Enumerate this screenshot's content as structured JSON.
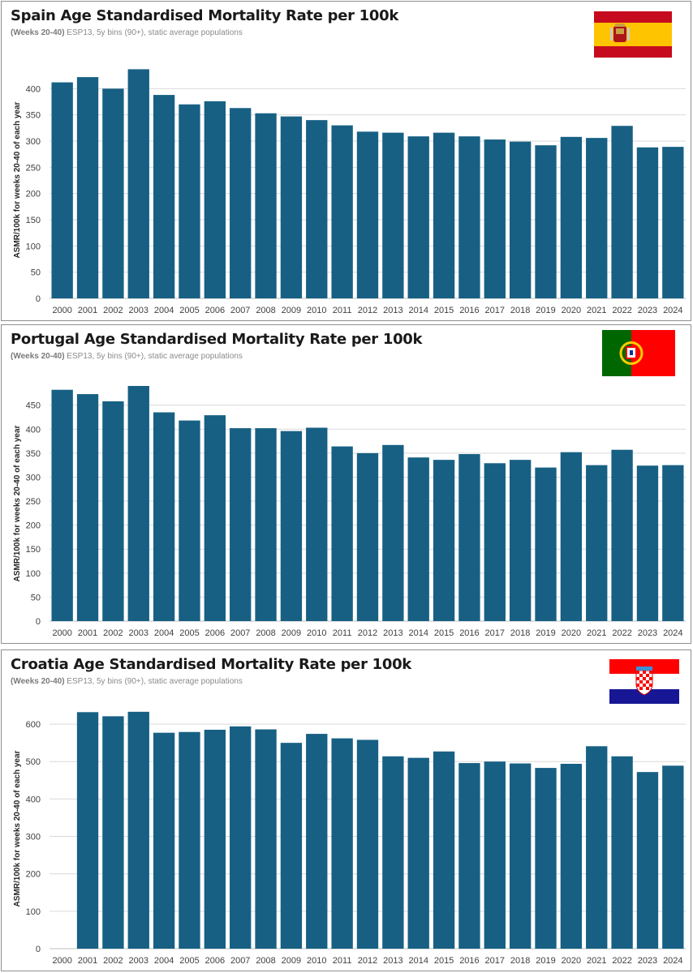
{
  "colors": {
    "bar": "#176084",
    "grid": "#d9d9d9",
    "axis": "#bfbfbf"
  },
  "chart_data": [
    {
      "type": "bar",
      "title": "Spain Age Standardised Mortality Rate per 100k",
      "subtitle_bold": "(Weeks 20-40)",
      "subtitle_rest": " ESP13, 5y bins (90+), static average populations",
      "ylabel": "ASMR/100k for weeks 20-40 of each year",
      "ylim": [
        0,
        450
      ],
      "yticks": [
        0,
        50,
        100,
        150,
        200,
        250,
        300,
        350,
        400
      ],
      "categories": [
        "2000",
        "2001",
        "2002",
        "2003",
        "2004",
        "2005",
        "2006",
        "2007",
        "2008",
        "2009",
        "2010",
        "2011",
        "2012",
        "2013",
        "2014",
        "2015",
        "2016",
        "2017",
        "2018",
        "2019",
        "2020",
        "2021",
        "2022",
        "2023",
        "2024"
      ],
      "values": [
        412,
        422,
        400,
        437,
        388,
        370,
        376,
        363,
        353,
        347,
        340,
        330,
        318,
        316,
        309,
        316,
        309,
        303,
        299,
        292,
        308,
        306,
        329,
        288,
        289
      ],
      "grid": true,
      "legend": "none",
      "flag": "spain-flag"
    },
    {
      "type": "bar",
      "title": "Portugal Age Standardised Mortality Rate per 100k",
      "subtitle_bold": "(Weeks 20-40)",
      "subtitle_rest": " ESP13, 5y bins (90+), static average populations",
      "ylabel": "ASMR/100k for weeks 20-40 of each year",
      "ylim": [
        0,
        490
      ],
      "yticks": [
        0,
        50,
        100,
        150,
        200,
        250,
        300,
        350,
        400,
        450
      ],
      "categories": [
        "2000",
        "2001",
        "2002",
        "2003",
        "2004",
        "2005",
        "2006",
        "2007",
        "2008",
        "2009",
        "2010",
        "2011",
        "2012",
        "2013",
        "2014",
        "2015",
        "2016",
        "2017",
        "2018",
        "2019",
        "2020",
        "2021",
        "2022",
        "2023",
        "2024"
      ],
      "values": [
        482,
        473,
        458,
        490,
        435,
        418,
        429,
        402,
        402,
        396,
        403,
        364,
        350,
        367,
        341,
        336,
        348,
        329,
        336,
        320,
        352,
        325,
        357,
        324,
        325
      ],
      "grid": true,
      "legend": "none",
      "flag": "portugal-flag"
    },
    {
      "type": "bar",
      "title": "Croatia Age Standardised Mortality Rate per 100k",
      "subtitle_bold": "(Weeks 20-40)",
      "subtitle_rest": " ESP13, 5y bins (90+), static average populations",
      "ylabel": "ASMR/100k for weeks 20-40 of each year",
      "ylim": [
        0,
        650
      ],
      "yticks": [
        0,
        100,
        200,
        300,
        400,
        500,
        600
      ],
      "categories": [
        "2000",
        "2001",
        "2002",
        "2003",
        "2004",
        "2005",
        "2006",
        "2007",
        "2008",
        "2009",
        "2010",
        "2011",
        "2012",
        "2013",
        "2014",
        "2015",
        "2016",
        "2017",
        "2018",
        "2019",
        "2020",
        "2021",
        "2022",
        "2023",
        "2024"
      ],
      "values": [
        null,
        632,
        621,
        633,
        577,
        579,
        585,
        594,
        586,
        550,
        574,
        562,
        558,
        514,
        510,
        527,
        496,
        500,
        495,
        483,
        494,
        541,
        514,
        472,
        489
      ],
      "grid": true,
      "legend": "none",
      "flag": "croatia-flag"
    }
  ]
}
